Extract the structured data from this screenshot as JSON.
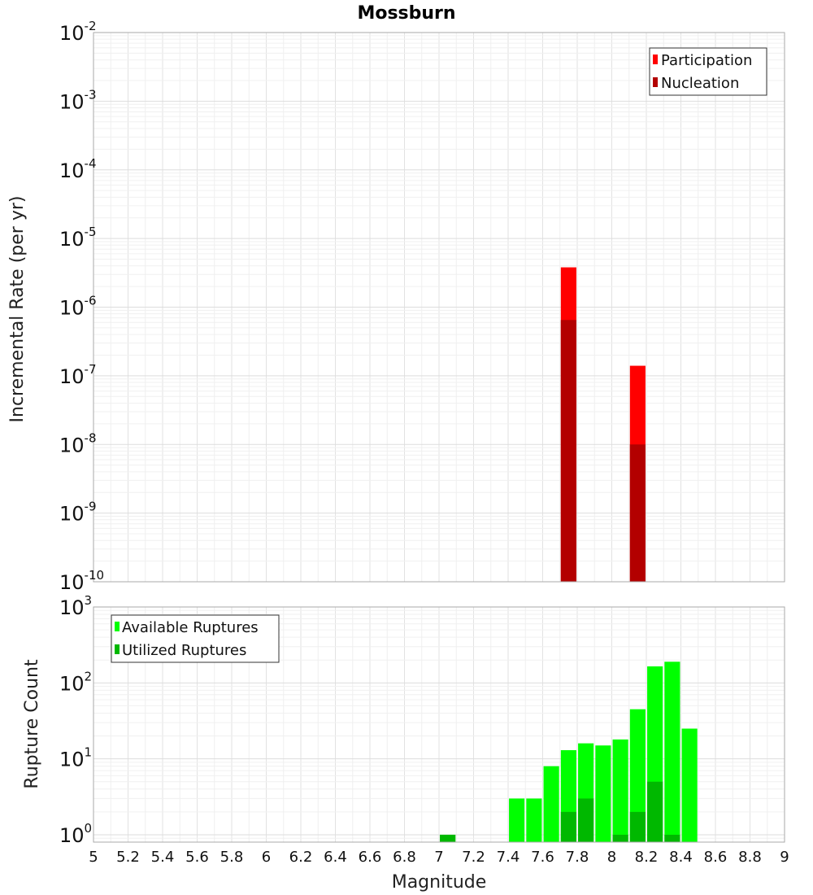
{
  "chart_data": [
    {
      "type": "bar",
      "title": "Mossburn",
      "xlabel": "",
      "ylabel": "Incremental Rate (per yr)",
      "xlim": [
        5,
        9
      ],
      "ylim": [
        1e-10,
        0.01
      ],
      "yscale": "log",
      "y_tick_exponents": [
        "-10",
        "-9",
        "-8",
        "-7",
        "-6",
        "-5",
        "-4",
        "-3",
        "-2"
      ],
      "grid": true,
      "legend_position": "top-right",
      "bar_width": 0.09,
      "series": [
        {
          "name": "Participation",
          "color": "#ff0000",
          "x": [
            7.75,
            8.15
          ],
          "values": [
            3.8e-06,
            1.4e-07
          ]
        },
        {
          "name": "Nucleation",
          "color": "#b30000",
          "x": [
            7.75,
            8.15
          ],
          "values": [
            6.5e-07,
            1e-08
          ]
        }
      ]
    },
    {
      "type": "bar",
      "title": "",
      "xlabel": "Magnitude",
      "ylabel": "Rupture Count",
      "xlim": [
        5,
        9
      ],
      "ylim": [
        0.8,
        1000
      ],
      "yscale": "log",
      "y_tick_exponents": [
        "0",
        "1",
        "2",
        "3"
      ],
      "x_ticks": [
        "5",
        "5.2",
        "5.4",
        "5.6",
        "5.8",
        "6",
        "6.2",
        "6.4",
        "6.6",
        "6.8",
        "7",
        "7.2",
        "7.4",
        "7.6",
        "7.8",
        "8",
        "8.2",
        "8.4",
        "8.6",
        "8.8",
        "9"
      ],
      "grid": true,
      "legend_position": "top-left",
      "bar_width": 0.09,
      "series": [
        {
          "name": "Available Ruptures",
          "color": "#00ff00",
          "x": [
            7.05,
            7.45,
            7.55,
            7.65,
            7.75,
            7.85,
            7.95,
            8.05,
            8.15,
            8.25,
            8.35,
            8.45
          ],
          "values": [
            1,
            3,
            3,
            8,
            13,
            16,
            15,
            18,
            45,
            165,
            190,
            25
          ]
        },
        {
          "name": "Utilized Ruptures",
          "color": "#00b800",
          "x": [
            7.05,
            7.75,
            7.85,
            8.05,
            8.15,
            8.25,
            8.35
          ],
          "values": [
            1,
            2,
            3,
            1,
            2,
            5,
            1
          ]
        }
      ]
    }
  ]
}
